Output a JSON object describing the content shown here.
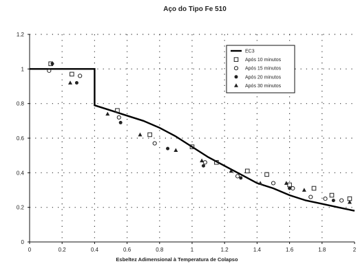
{
  "chart_data": {
    "type": "scatter",
    "title": "Aço do Tipo Fe 510",
    "xlabel": "Esbeltez Adimensional à Temperatura de Colapso",
    "ylabel": "",
    "xlim": [
      0,
      2
    ],
    "ylim": [
      0,
      1.2
    ],
    "xticks": [
      "0",
      "0.2",
      "0.4",
      "0.6",
      "0.8",
      "1",
      "1.2",
      "1.4",
      "1.6",
      "1.8",
      "2"
    ],
    "yticks": [
      "0",
      "0.2",
      "0.4",
      "0.6",
      "0.8",
      "1",
      "1.2"
    ],
    "grid": "dotted",
    "legend_position": "top-right",
    "series": [
      {
        "name": "EC3",
        "kind": "line",
        "x": [
          0.0,
          0.4,
          0.4,
          0.5,
          0.6,
          0.7,
          0.8,
          0.9,
          1.0,
          1.1,
          1.2,
          1.3,
          1.4,
          1.5,
          1.6,
          1.7,
          1.8,
          1.9,
          2.0
        ],
        "y": [
          1.0,
          1.0,
          0.79,
          0.76,
          0.73,
          0.7,
          0.66,
          0.61,
          0.55,
          0.49,
          0.44,
          0.39,
          0.34,
          0.31,
          0.27,
          0.24,
          0.22,
          0.2,
          0.18
        ]
      },
      {
        "name": "Após 10 minutos",
        "marker": "square",
        "x": [
          0.13,
          0.26,
          0.54,
          0.74,
          1.0,
          1.15,
          1.34,
          1.46,
          1.6,
          1.75,
          1.86,
          1.97
        ],
        "y": [
          1.03,
          0.97,
          0.76,
          0.62,
          0.55,
          0.46,
          0.41,
          0.39,
          0.33,
          0.31,
          0.27,
          0.25
        ]
      },
      {
        "name": "Após 15 minutos",
        "marker": "circle-open",
        "x": [
          0.12,
          0.31,
          0.55,
          0.77,
          1.08,
          1.28,
          1.5,
          1.62,
          1.73,
          1.82,
          1.92
        ],
        "y": [
          0.99,
          0.96,
          0.72,
          0.57,
          0.46,
          0.38,
          0.34,
          0.31,
          0.26,
          0.25,
          0.24
        ]
      },
      {
        "name": "Após 20 minutos",
        "marker": "circle-filled",
        "x": [
          0.14,
          0.29,
          0.56,
          0.85,
          1.07,
          1.3,
          1.6,
          1.87
        ],
        "y": [
          1.03,
          0.92,
          0.69,
          0.54,
          0.44,
          0.37,
          0.31,
          0.24
        ]
      },
      {
        "name": "Após 30 minutos",
        "marker": "triangle",
        "x": [
          0.25,
          0.48,
          0.68,
          0.9,
          1.06,
          1.24,
          1.42,
          1.58,
          1.69,
          1.97
        ],
        "y": [
          0.92,
          0.74,
          0.62,
          0.53,
          0.47,
          0.41,
          0.34,
          0.34,
          0.3,
          0.23
        ]
      }
    ]
  }
}
